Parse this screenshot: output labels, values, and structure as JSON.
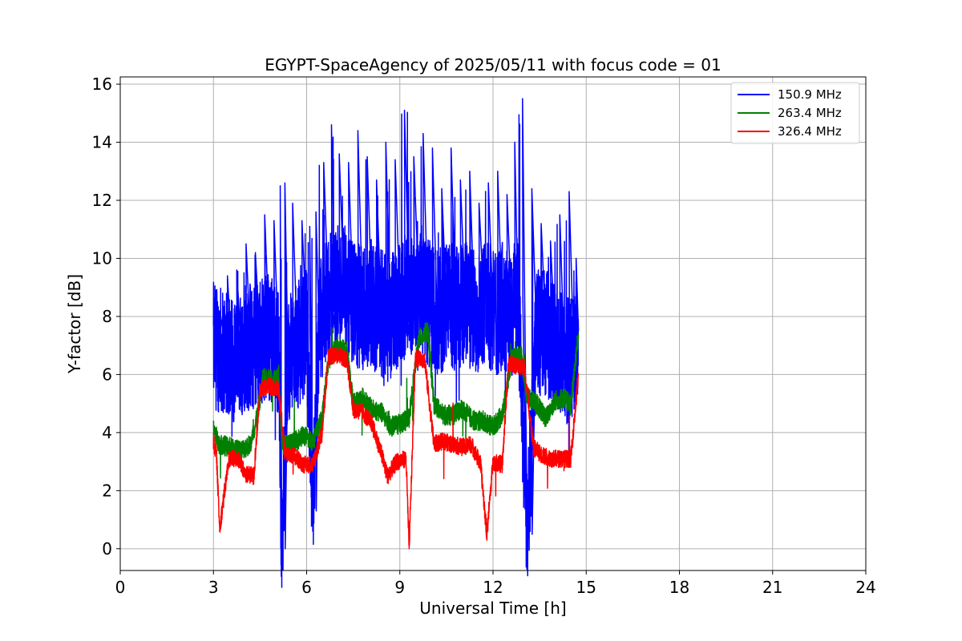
{
  "chart_data": {
    "type": "line",
    "title": "EGYPT-SpaceAgency of 2025/05/11 with focus code = 01",
    "xlabel": "Universal Time [h]",
    "ylabel": "Y-factor [dB]",
    "xlim": [
      0,
      24
    ],
    "ylim": [
      -0.75,
      16.25
    ],
    "xticks": [
      0,
      3,
      6,
      9,
      12,
      15,
      18,
      21,
      24
    ],
    "yticks": [
      0,
      2,
      4,
      6,
      8,
      10,
      12,
      14,
      16
    ],
    "grid": true,
    "legend_position": "top-right",
    "colors": {
      "series_1": "#0000ff",
      "series_2": "#008000",
      "series_3": "#ff0000",
      "grid": "#b0b0b0"
    },
    "series": [
      {
        "name": "150.9 MHz",
        "color": "#0000ff",
        "x": [
          3.0,
          3.3,
          3.6,
          3.9,
          4.2,
          4.5,
          4.8,
          5.1,
          5.2,
          5.4,
          5.7,
          6.0,
          6.2,
          6.4,
          6.7,
          6.9,
          7.2,
          7.5,
          7.8,
          8.1,
          8.4,
          8.7,
          9.0,
          9.3,
          9.6,
          9.9,
          10.2,
          10.5,
          10.8,
          11.1,
          11.4,
          11.7,
          12.0,
          12.3,
          12.6,
          12.8,
          13.1,
          13.4,
          13.7,
          14.0,
          14.3,
          14.6,
          14.75
        ],
        "y": [
          7.0,
          6.8,
          6.5,
          6.8,
          6.9,
          7.2,
          7.3,
          6.8,
          0.0,
          6.5,
          7.0,
          7.5,
          1.3,
          7.6,
          8.6,
          8.9,
          9.0,
          8.3,
          8.3,
          8.5,
          8.1,
          7.9,
          8.6,
          8.6,
          9.2,
          8.5,
          8.1,
          8.4,
          8.3,
          8.5,
          8.1,
          8.6,
          8.2,
          8.0,
          8.1,
          8.6,
          0.5,
          7.5,
          7.4,
          7.1,
          6.4,
          6.6,
          7.5
        ],
        "peaks_y": [
          8.3,
          9.4,
          9.6,
          10.5,
          10.2,
          11.5,
          11.3,
          12.5,
          12.6,
          11.9,
          11.3,
          11.1,
          11.6,
          13.3,
          14.6,
          13.6,
          13.3,
          14.4,
          13.5,
          12.7,
          14.0,
          13.4,
          15.1,
          13.5,
          14.3,
          13.8,
          12.4,
          13.8,
          12.7,
          13.0,
          11.9,
          12.6,
          13.0,
          12.2,
          14.0,
          15.5,
          12.4,
          11.2,
          10.6,
          11.5,
          12.3,
          10.0,
          10.1
        ]
      },
      {
        "name": "263.4 MHz",
        "color": "#008000",
        "x": [
          3.0,
          3.2,
          3.5,
          3.9,
          4.2,
          4.4,
          4.6,
          4.9,
          5.1,
          5.2,
          5.5,
          5.9,
          6.2,
          6.5,
          6.7,
          7.0,
          7.3,
          7.5,
          7.8,
          8.1,
          8.4,
          8.7,
          9.0,
          9.3,
          9.6,
          9.9,
          10.1,
          10.4,
          10.7,
          11.0,
          11.4,
          11.7,
          12.0,
          12.3,
          12.6,
          12.9,
          13.1,
          13.4,
          13.7,
          14.0,
          14.3,
          14.5,
          14.75
        ],
        "y": [
          4.1,
          3.6,
          3.5,
          3.4,
          3.6,
          4.5,
          5.9,
          5.8,
          6.0,
          3.6,
          3.6,
          3.9,
          3.7,
          4.5,
          6.5,
          7.0,
          6.8,
          5.0,
          5.2,
          4.8,
          4.7,
          4.2,
          4.3,
          4.5,
          7.2,
          7.5,
          5.0,
          4.6,
          4.6,
          4.8,
          4.4,
          4.4,
          4.2,
          4.6,
          6.5,
          6.7,
          5.2,
          5.0,
          4.5,
          5.1,
          5.2,
          4.9,
          7.4
        ]
      },
      {
        "name": "326.4 MHz",
        "color": "#ff0000",
        "x": [
          3.0,
          3.1,
          3.2,
          3.5,
          3.8,
          4.0,
          4.3,
          4.5,
          4.8,
          5.1,
          5.3,
          5.6,
          5.9,
          6.2,
          6.5,
          6.7,
          7.0,
          7.3,
          7.5,
          7.8,
          8.1,
          8.4,
          8.6,
          8.9,
          9.2,
          9.3,
          9.5,
          9.8,
          10.1,
          10.4,
          10.7,
          11.0,
          11.3,
          11.6,
          11.8,
          12.0,
          12.3,
          12.5,
          12.8,
          13.0,
          13.3,
          13.6,
          13.9,
          14.2,
          14.5,
          14.75
        ],
        "y": [
          3.7,
          3.2,
          0.7,
          3.1,
          3.1,
          2.6,
          2.5,
          5.5,
          5.6,
          5.5,
          3.3,
          3.2,
          2.9,
          2.9,
          4.0,
          6.6,
          6.7,
          6.5,
          4.8,
          4.7,
          4.3,
          3.3,
          2.5,
          3.0,
          3.1,
          0.0,
          6.6,
          6.5,
          3.6,
          3.7,
          3.6,
          3.5,
          3.6,
          2.9,
          0.5,
          3.0,
          2.9,
          6.4,
          6.3,
          6.3,
          3.5,
          3.2,
          3.1,
          3.1,
          3.1,
          6.0
        ]
      }
    ]
  }
}
